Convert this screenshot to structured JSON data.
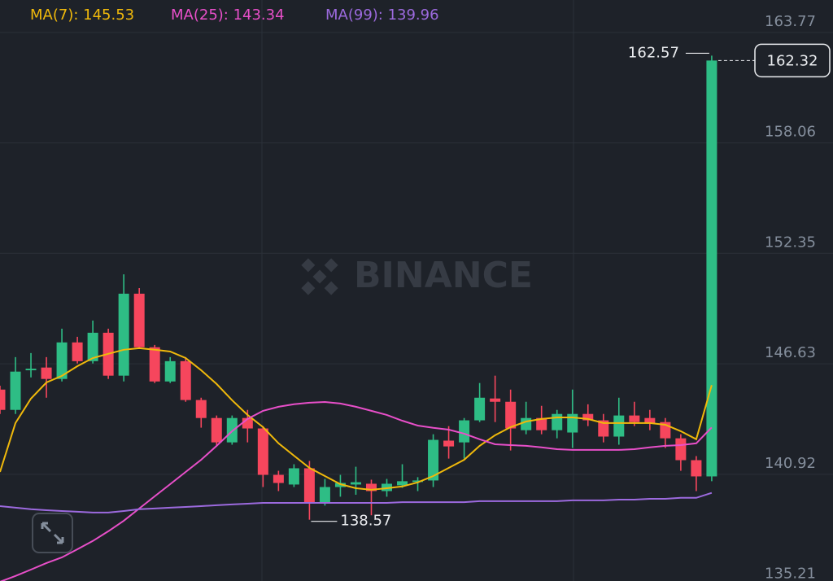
{
  "chart_data": {
    "type": "candlestick",
    "watermark": "BINANCE",
    "up_color": "#2ebd85",
    "down_color": "#f6465d",
    "ylim": [
      135.4,
      165.45
    ],
    "yticks": [
      163.77,
      158.06,
      152.35,
      146.63,
      140.92,
      135.21
    ],
    "grid": true,
    "open": [
      145.3,
      144.25,
      146.3,
      146.44,
      145.85,
      147.74,
      146.77,
      148.24,
      146.02,
      150.26,
      147.49,
      145.72,
      146.77,
      144.76,
      143.83,
      142.57,
      143.83,
      143.29,
      140.89,
      140.39,
      141.23,
      139.42,
      140.26,
      140.39,
      140.43,
      140.05,
      140.35,
      140.52,
      140.6,
      142.66,
      142.57,
      143.71,
      144.84,
      144.67,
      143.2,
      143.83,
      143.2,
      143.08,
      144.04,
      143.71,
      142.87,
      143.96,
      143.83,
      143.62,
      142.78,
      141.65,
      140.81
    ],
    "high": [
      145.5,
      146.98,
      147.19,
      146.98,
      148.45,
      148.03,
      148.87,
      148.45,
      151.26,
      150.55,
      147.61,
      146.98,
      146.98,
      144.88,
      143.96,
      143.96,
      144.25,
      143.41,
      141.1,
      141.44,
      141.61,
      140.68,
      140.89,
      141.31,
      140.64,
      140.68,
      141.44,
      140.77,
      142.99,
      143.41,
      143.83,
      145.64,
      146.02,
      145.3,
      144.67,
      144.46,
      144.25,
      145.3,
      144.54,
      144.04,
      144.88,
      144.67,
      144.25,
      143.83,
      142.99,
      141.86,
      162.57
    ],
    "low": [
      144.04,
      144.04,
      145.93,
      144.88,
      145.72,
      146.65,
      146.65,
      145.85,
      145.72,
      147.4,
      145.64,
      145.64,
      144.67,
      143.33,
      142.36,
      142.45,
      142.57,
      140.26,
      140.05,
      140.26,
      138.57,
      139.3,
      139.76,
      139.86,
      138.8,
      139.76,
      140.22,
      140.05,
      140.26,
      141.73,
      141.73,
      143.62,
      143.62,
      142.15,
      142.99,
      142.99,
      142.78,
      142.28,
      143.41,
      142.57,
      142.45,
      143.41,
      143.2,
      142.28,
      141.1,
      140.05,
      140.56
    ],
    "close": [
      144.25,
      146.23,
      146.38,
      145.85,
      147.74,
      146.77,
      148.24,
      146.02,
      150.26,
      147.49,
      145.72,
      146.77,
      144.76,
      143.83,
      142.57,
      143.83,
      143.29,
      140.89,
      140.47,
      141.23,
      139.42,
      140.26,
      140.47,
      140.51,
      140.05,
      140.43,
      140.56,
      140.6,
      142.7,
      142.36,
      143.71,
      144.88,
      144.67,
      143.29,
      143.83,
      143.2,
      144.04,
      144.04,
      143.71,
      142.87,
      143.96,
      143.62,
      143.54,
      142.78,
      141.65,
      140.81,
      162.32
    ],
    "series": [
      {
        "name": "MA(7): 145.53",
        "color": "#f0b90b",
        "values": [
          141.04,
          143.57,
          144.83,
          145.67,
          146.01,
          146.51,
          146.93,
          147.15,
          147.36,
          147.44,
          147.36,
          147.27,
          146.93,
          146.3,
          145.59,
          144.75,
          143.99,
          143.36,
          142.52,
          141.88,
          141.25,
          140.83,
          140.41,
          140.2,
          140.12,
          140.2,
          140.29,
          140.5,
          140.83,
          141.25,
          141.67,
          142.39,
          142.94,
          143.36,
          143.65,
          143.78,
          143.86,
          143.86,
          143.78,
          143.57,
          143.57,
          143.57,
          143.57,
          143.48,
          143.15,
          142.73,
          145.53
        ]
      },
      {
        "name": "MA(25): 143.34",
        "color": "#e84fc9",
        "values": [
          135.36,
          135.66,
          135.99,
          136.33,
          136.62,
          137.04,
          137.47,
          137.97,
          138.52,
          139.15,
          139.78,
          140.41,
          141.04,
          141.67,
          142.39,
          143.15,
          143.78,
          144.2,
          144.41,
          144.54,
          144.62,
          144.66,
          144.58,
          144.41,
          144.2,
          143.99,
          143.69,
          143.44,
          143.32,
          143.23,
          143.02,
          142.73,
          142.47,
          142.43,
          142.39,
          142.31,
          142.22,
          142.18,
          142.18,
          142.18,
          142.18,
          142.22,
          142.31,
          142.39,
          142.43,
          142.52,
          143.34
        ]
      },
      {
        "name": "MA(99): 139.96",
        "color": "#9c6ade",
        "values": [
          139.27,
          139.19,
          139.11,
          139.06,
          139.02,
          138.98,
          138.94,
          138.94,
          139.02,
          139.11,
          139.15,
          139.19,
          139.23,
          139.27,
          139.32,
          139.36,
          139.4,
          139.44,
          139.44,
          139.44,
          139.44,
          139.44,
          139.44,
          139.44,
          139.44,
          139.44,
          139.48,
          139.48,
          139.48,
          139.48,
          139.48,
          139.53,
          139.53,
          139.53,
          139.53,
          139.53,
          139.53,
          139.57,
          139.57,
          139.57,
          139.61,
          139.61,
          139.65,
          139.65,
          139.7,
          139.7,
          139.96
        ]
      }
    ],
    "max_marker": 162.57,
    "min_marker": 138.57,
    "last_price": 162.32
  }
}
